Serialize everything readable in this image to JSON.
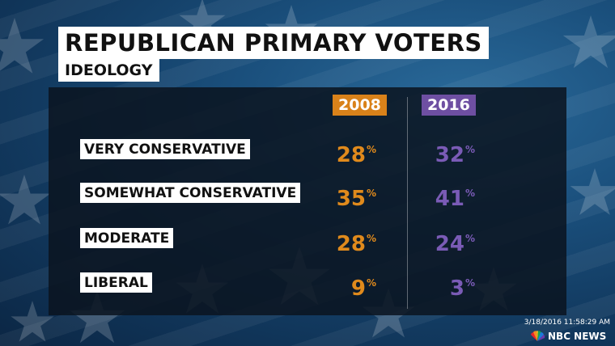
{
  "title": "REPUBLICAN PRIMARY VOTERS",
  "subtitle": "IDEOLOGY",
  "colors": {
    "year_2008": "#d9821a",
    "year_2016": "#6e4fa2",
    "value_2008": "#e08a1c",
    "value_2016": "#7a5bb6"
  },
  "chart_data": {
    "type": "table",
    "title": "REPUBLICAN PRIMARY VOTERS",
    "subtitle": "IDEOLOGY",
    "columns": [
      "2008",
      "2016"
    ],
    "unit": "%",
    "rows": [
      {
        "label": "VERY CONSERVATIVE",
        "values": [
          28,
          32
        ]
      },
      {
        "label": "SOMEWHAT CONSERVATIVE",
        "values": [
          35,
          41
        ]
      },
      {
        "label": "MODERATE",
        "values": [
          28,
          24
        ]
      },
      {
        "label": "LIBERAL",
        "values": [
          9,
          3
        ]
      }
    ]
  },
  "footer": {
    "timestamp": "3/18/2016 11:58:29 AM",
    "logo_text": "NBC NEWS",
    "logo_icon": "peacock-icon"
  }
}
